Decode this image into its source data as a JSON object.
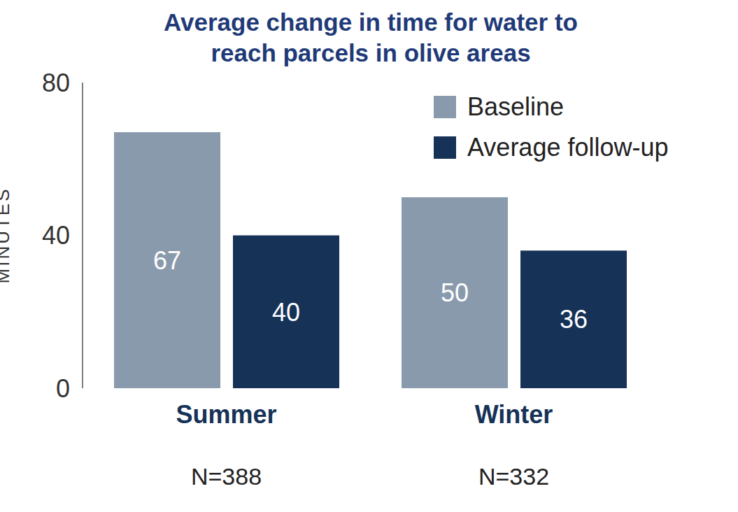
{
  "chart_data": {
    "type": "bar",
    "title": "Average change in time for water to reach parcels in olive areas",
    "y_label": "MINUTES",
    "categories": [
      "Summer",
      "Winter"
    ],
    "annotations": [
      "N=388",
      "N=332"
    ],
    "series": [
      {
        "name": "Baseline",
        "color": "#8a9aad",
        "values": [
          67,
          50
        ]
      },
      {
        "name": "Average follow-up",
        "color": "#163257",
        "values": [
          40,
          36
        ]
      }
    ],
    "ylim": [
      0,
      80
    ],
    "yticks": [
      0,
      40,
      80
    ],
    "data_labels": true,
    "legend": "top-right",
    "grid": false
  }
}
